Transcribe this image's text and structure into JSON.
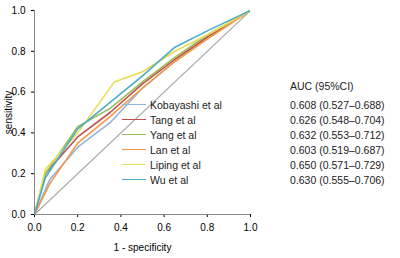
{
  "chart_data": {
    "type": "line",
    "x_label": "1 - specificity",
    "y_label": "sensitivity",
    "xlim": [
      0,
      1
    ],
    "ylim": [
      0,
      1
    ],
    "xticks": [
      {
        "value": 0,
        "label": "0.0"
      },
      {
        "value": 0.2,
        "label": "0.2"
      },
      {
        "value": 0.4,
        "label": "0.4"
      },
      {
        "value": 0.6,
        "label": "0.6"
      },
      {
        "value": 0.8,
        "label": "0.8"
      },
      {
        "value": 1,
        "label": "1.0"
      }
    ],
    "yticks": [
      {
        "value": 0,
        "label": "0.0"
      },
      {
        "value": 0.2,
        "label": "0.2"
      },
      {
        "value": 0.4,
        "label": "0.4"
      },
      {
        "value": 0.6,
        "label": "0.6"
      },
      {
        "value": 0.8,
        "label": "0.8"
      },
      {
        "value": 1,
        "label": "1.0"
      }
    ],
    "grid": false,
    "legend": "right",
    "legend_header": "AUC (95%CI)",
    "diagonal": {
      "x": [
        0,
        1
      ],
      "values": [
        0,
        1
      ],
      "color": "#a6a6a6"
    },
    "series": [
      {
        "name": "Kobayashi et al",
        "color": "#8fb4e3",
        "auc_label": "0.608 (0.527–0.688)",
        "x": [
          0,
          0.07,
          0.2,
          0.35,
          0.5,
          0.65,
          0.8,
          1
        ],
        "values": [
          0,
          0.17,
          0.33,
          0.45,
          0.62,
          0.75,
          0.87,
          1
        ]
      },
      {
        "name": "Tang et al",
        "color": "#c0504d",
        "auc_label": "0.626 (0.548–0.704)",
        "x": [
          0,
          0.05,
          0.2,
          0.35,
          0.5,
          0.65,
          0.8,
          1
        ],
        "values": [
          0,
          0.2,
          0.38,
          0.5,
          0.64,
          0.76,
          0.87,
          1
        ]
      },
      {
        "name": "Yang et al",
        "color": "#9bbb59",
        "auc_label": "0.632 (0.553–0.712)",
        "x": [
          0,
          0.05,
          0.2,
          0.35,
          0.5,
          0.65,
          0.8,
          1
        ],
        "values": [
          0,
          0.2,
          0.43,
          0.52,
          0.65,
          0.77,
          0.88,
          1
        ]
      },
      {
        "name": "Lan et al",
        "color": "#f79646",
        "auc_label": "0.603 (0.519–0.687)",
        "x": [
          0,
          0.07,
          0.2,
          0.35,
          0.5,
          0.65,
          0.8,
          1
        ],
        "values": [
          0,
          0.15,
          0.35,
          0.48,
          0.62,
          0.75,
          0.86,
          1
        ]
      },
      {
        "name": "Liping et al",
        "color": "#e8dc55",
        "auc_label": "0.650 (0.571–0.729)",
        "x": [
          0,
          0.05,
          0.2,
          0.37,
          0.5,
          0.65,
          0.8,
          1
        ],
        "values": [
          0,
          0.22,
          0.4,
          0.65,
          0.7,
          0.8,
          0.88,
          1
        ]
      },
      {
        "name": "Wu et al",
        "color": "#4bacc6",
        "auc_label": "0.630 (0.555–0.706)",
        "x": [
          0,
          0.05,
          0.2,
          0.35,
          0.5,
          0.65,
          0.8,
          1
        ],
        "values": [
          0,
          0.18,
          0.42,
          0.55,
          0.68,
          0.82,
          0.9,
          1
        ]
      }
    ]
  }
}
